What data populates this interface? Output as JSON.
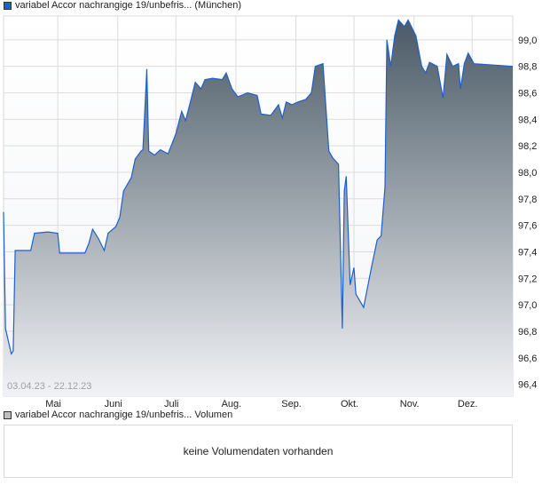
{
  "legend_price": {
    "label": "variabel Accor nachrangige 19/unbefris... (München)",
    "color": "#1f5fd0"
  },
  "legend_volume": {
    "label": "variabel Accor nachrangige 19/unbefris... Volumen",
    "color": "#bfbfbf"
  },
  "volume_message": "keine Volumendaten vorhanden",
  "chart_data": {
    "type": "area",
    "date_range_label": "03.04.23 - 22.12.23",
    "xlim": [
      "2023-04-03",
      "2023-12-22"
    ],
    "ylim": [
      96.31,
      99.18
    ],
    "y_ticks": [
      "96,4",
      "96,6",
      "96,8",
      "97,0",
      "97,2",
      "97,4",
      "97,6",
      "97,8",
      "98,0",
      "98,2",
      "98,4",
      "98,6",
      "98,8",
      "99,0"
    ],
    "x_ticks": [
      {
        "label": "Mai",
        "date": "2023-05-01"
      },
      {
        "label": "Juni",
        "date": "2023-06-01"
      },
      {
        "label": "Juli",
        "date": "2023-07-01"
      },
      {
        "label": "Aug.",
        "date": "2023-08-01"
      },
      {
        "label": "Sep.",
        "date": "2023-09-01"
      },
      {
        "label": "Okt.",
        "date": "2023-10-01"
      },
      {
        "label": "Nov.",
        "date": "2023-11-01"
      },
      {
        "label": "Dez.",
        "date": "2023-12-01"
      }
    ],
    "grid": true,
    "line_color": "#1f5fd0",
    "fill_top_color": "#4a5a66",
    "fill_bottom_color": "#f2f3f6",
    "series": [
      {
        "points": [
          [
            "2023-04-03",
            97.7
          ],
          [
            "2023-04-04",
            96.82
          ],
          [
            "2023-04-07",
            96.63
          ],
          [
            "2023-04-08",
            96.65
          ],
          [
            "2023-04-09",
            97.41
          ],
          [
            "2023-04-17",
            97.41
          ],
          [
            "2023-04-19",
            97.54
          ],
          [
            "2023-04-26",
            97.55
          ],
          [
            "2023-05-01",
            97.54
          ],
          [
            "2023-05-02",
            97.39
          ],
          [
            "2023-05-15",
            97.39
          ],
          [
            "2023-05-17",
            97.46
          ],
          [
            "2023-05-19",
            97.57
          ],
          [
            "2023-05-22",
            97.5
          ],
          [
            "2023-05-25",
            97.41
          ],
          [
            "2023-05-27",
            97.54
          ],
          [
            "2023-05-31",
            97.59
          ],
          [
            "2023-06-02",
            97.66
          ],
          [
            "2023-06-04",
            97.86
          ],
          [
            "2023-06-08",
            97.96
          ],
          [
            "2023-06-10",
            98.1
          ],
          [
            "2023-06-13",
            98.16
          ],
          [
            "2023-06-14",
            98.17
          ],
          [
            "2023-06-16",
            98.78
          ],
          [
            "2023-06-17",
            98.16
          ],
          [
            "2023-06-20",
            98.13
          ],
          [
            "2023-06-23",
            98.17
          ],
          [
            "2023-06-27",
            98.14
          ],
          [
            "2023-07-01",
            98.29
          ],
          [
            "2023-07-04",
            98.46
          ],
          [
            "2023-07-06",
            98.39
          ],
          [
            "2023-07-09",
            98.56
          ],
          [
            "2023-07-11",
            98.68
          ],
          [
            "2023-07-14",
            98.63
          ],
          [
            "2023-07-16",
            98.7
          ],
          [
            "2023-07-20",
            98.71
          ],
          [
            "2023-07-25",
            98.7
          ],
          [
            "2023-07-27",
            98.75
          ],
          [
            "2023-07-30",
            98.63
          ],
          [
            "2023-08-02",
            98.57
          ],
          [
            "2023-08-07",
            98.6
          ],
          [
            "2023-08-12",
            98.58
          ],
          [
            "2023-08-14",
            98.44
          ],
          [
            "2023-08-19",
            98.43
          ],
          [
            "2023-08-23",
            98.51
          ],
          [
            "2023-08-25",
            98.41
          ],
          [
            "2023-08-27",
            98.53
          ],
          [
            "2023-08-30",
            98.51
          ],
          [
            "2023-09-02",
            98.53
          ],
          [
            "2023-09-06",
            98.55
          ],
          [
            "2023-09-09",
            98.6
          ],
          [
            "2023-09-11",
            98.8
          ],
          [
            "2023-09-15",
            98.82
          ],
          [
            "2023-09-18",
            98.16
          ],
          [
            "2023-09-20",
            98.11
          ],
          [
            "2023-09-23",
            98.06
          ],
          [
            "2023-09-25",
            96.82
          ],
          [
            "2023-09-26",
            97.86
          ],
          [
            "2023-09-27",
            97.97
          ],
          [
            "2023-09-29",
            97.15
          ],
          [
            "2023-10-01",
            97.28
          ],
          [
            "2023-10-02",
            97.08
          ],
          [
            "2023-10-06",
            96.98
          ],
          [
            "2023-10-10",
            97.28
          ],
          [
            "2023-10-13",
            97.49
          ],
          [
            "2023-10-15",
            97.52
          ],
          [
            "2023-10-17",
            97.89
          ],
          [
            "2023-10-18",
            99.0
          ],
          [
            "2023-10-20",
            98.8
          ],
          [
            "2023-10-22",
            99.03
          ],
          [
            "2023-10-24",
            99.15
          ],
          [
            "2023-10-27",
            99.1
          ],
          [
            "2023-10-29",
            99.15
          ],
          [
            "2023-11-02",
            99.03
          ],
          [
            "2023-11-05",
            98.8
          ],
          [
            "2023-11-07",
            98.75
          ],
          [
            "2023-11-09",
            98.83
          ],
          [
            "2023-11-13",
            98.8
          ],
          [
            "2023-11-16",
            98.56
          ],
          [
            "2023-11-18",
            98.89
          ],
          [
            "2023-11-21",
            98.8
          ],
          [
            "2023-11-24",
            98.82
          ],
          [
            "2023-11-25",
            98.63
          ],
          [
            "2023-11-27",
            98.82
          ],
          [
            "2023-11-29",
            98.9
          ],
          [
            "2023-12-02",
            98.82
          ],
          [
            "2023-12-22",
            98.8
          ]
        ]
      }
    ]
  }
}
